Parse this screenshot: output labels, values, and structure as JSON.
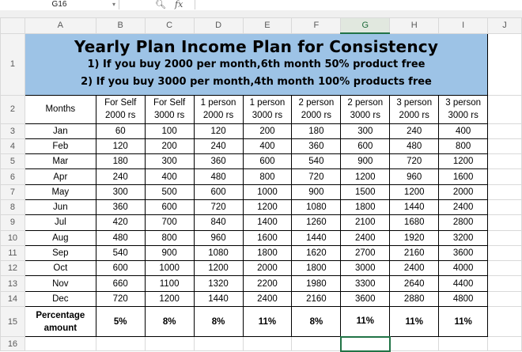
{
  "formula_bar": {
    "name_box": "G16",
    "fx_label": "fx"
  },
  "columns": [
    "A",
    "B",
    "C",
    "D",
    "E",
    "F",
    "G",
    "H",
    "I",
    "J"
  ],
  "selected_column": "G",
  "title": {
    "line1": "Yearly Plan Income Plan for Consistency",
    "line2": "1) If you buy 2000 per month,6th month 50% product free",
    "line3": "2)  If you buy 3000 per month,4th month 100% products free",
    "fill_color": "#9dc3e6"
  },
  "header": {
    "months": "Months",
    "cols": [
      {
        "top": "For Self",
        "bottom": "2000 rs"
      },
      {
        "top": "For Self",
        "bottom": "3000 rs"
      },
      {
        "top": "1 person",
        "bottom": "2000 rs"
      },
      {
        "top": "1 person",
        "bottom": "3000 rs"
      },
      {
        "top": "2 person",
        "bottom": "2000 rs"
      },
      {
        "top": "2 person",
        "bottom": "3000 rs"
      },
      {
        "top": "3 person",
        "bottom": "2000 rs"
      },
      {
        "top": "3 person",
        "bottom": "3000 rs"
      }
    ]
  },
  "rows": [
    {
      "n": "3",
      "month": "Jan",
      "v": [
        "60",
        "100",
        "120",
        "200",
        "180",
        "300",
        "240",
        "400"
      ]
    },
    {
      "n": "4",
      "month": "Feb",
      "v": [
        "120",
        "200",
        "240",
        "400",
        "360",
        "600",
        "480",
        "800"
      ]
    },
    {
      "n": "5",
      "month": "Mar",
      "v": [
        "180",
        "300",
        "360",
        "600",
        "540",
        "900",
        "720",
        "1200"
      ]
    },
    {
      "n": "6",
      "month": "Apr",
      "v": [
        "240",
        "400",
        "480",
        "800",
        "720",
        "1200",
        "960",
        "1600"
      ]
    },
    {
      "n": "7",
      "month": "May",
      "v": [
        "300",
        "500",
        "600",
        "1000",
        "900",
        "1500",
        "1200",
        "2000"
      ]
    },
    {
      "n": "8",
      "month": "Jun",
      "v": [
        "360",
        "600",
        "720",
        "1200",
        "1080",
        "1800",
        "1440",
        "2400"
      ]
    },
    {
      "n": "9",
      "month": "Jul",
      "v": [
        "420",
        "700",
        "840",
        "1400",
        "1260",
        "2100",
        "1680",
        "2800"
      ]
    },
    {
      "n": "10",
      "month": "Aug",
      "v": [
        "480",
        "800",
        "960",
        "1600",
        "1440",
        "2400",
        "1920",
        "3200"
      ]
    },
    {
      "n": "11",
      "month": "Sep",
      "v": [
        "540",
        "900",
        "1080",
        "1800",
        "1620",
        "2700",
        "2160",
        "3600"
      ]
    },
    {
      "n": "12",
      "month": "Oct",
      "v": [
        "600",
        "1000",
        "1200",
        "2000",
        "1800",
        "3000",
        "2400",
        "4000"
      ]
    },
    {
      "n": "13",
      "month": "Nov",
      "v": [
        "660",
        "1100",
        "1320",
        "2200",
        "1980",
        "3300",
        "2640",
        "4400"
      ]
    },
    {
      "n": "14",
      "month": "Dec",
      "v": [
        "720",
        "1200",
        "1440",
        "2400",
        "2160",
        "3600",
        "2880",
        "4800"
      ]
    }
  ],
  "percentage": {
    "n": "15",
    "label_top": "Percentage",
    "label_bottom": "amount",
    "v": [
      "5%",
      "8%",
      "8%",
      "11%",
      "8%",
      "11%",
      "11%",
      "11%"
    ]
  },
  "row_numbers": {
    "title": "1",
    "header": "2",
    "next": "16"
  }
}
